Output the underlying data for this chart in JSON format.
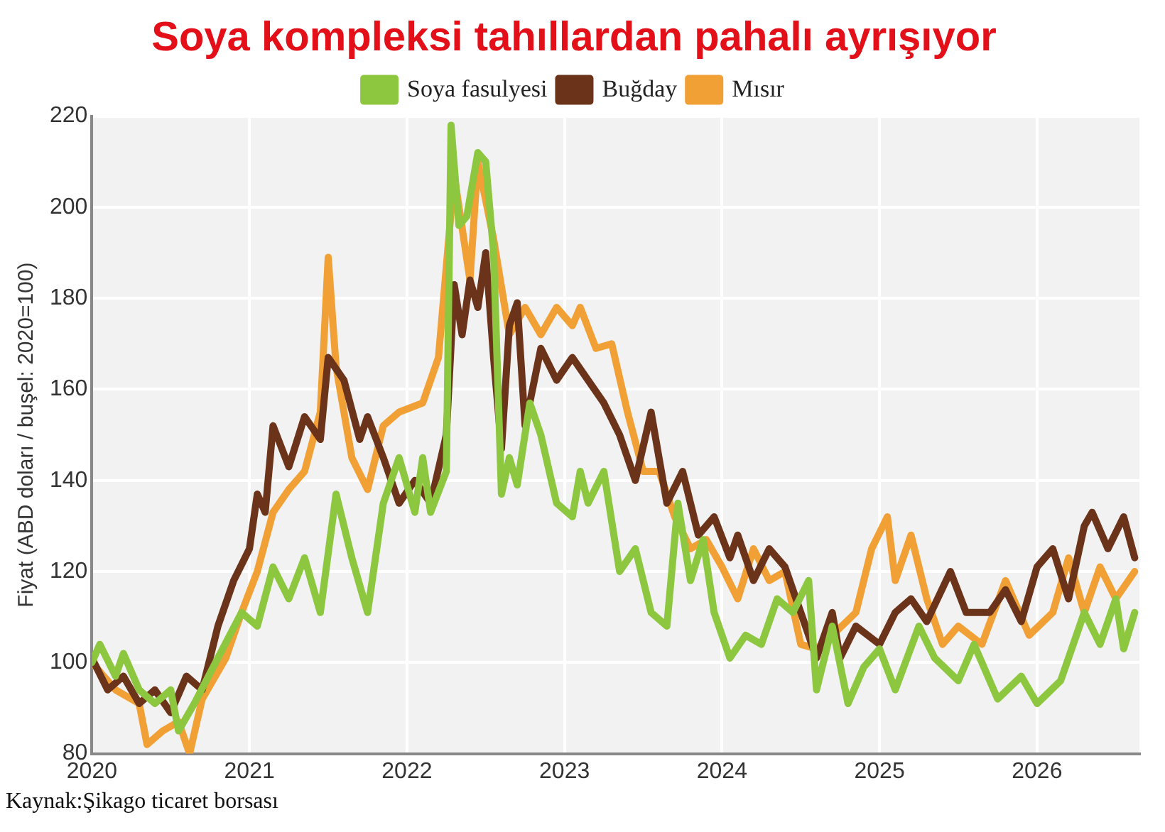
{
  "chart_data": {
    "type": "line",
    "title": "Soya kompleksi tahıllardan pahalı ayrışıyor",
    "ylabel": "Fiyat (ABD doları / buşel: 2020=100)",
    "xlim": [
      2020,
      2026.65
    ],
    "xticks": [
      2020,
      2021,
      2022,
      2023,
      2024,
      2025,
      2026
    ],
    "ylim": [
      80,
      220
    ],
    "yticks": [
      80,
      100,
      120,
      140,
      160,
      180,
      200,
      220
    ],
    "grid": true,
    "legend": "top",
    "line_style": "solid",
    "marker": "none",
    "annotations": [
      "Kaynak:Şikago ticaret borsası"
    ],
    "series": [
      {
        "name": "Soya fasulyesi",
        "color": "#8dc63f",
        "x": [
          2020.0,
          2020.05,
          2020.15,
          2020.2,
          2020.3,
          2020.4,
          2020.5,
          2020.55,
          2020.65,
          2020.8,
          2020.95,
          2021.05,
          2021.15,
          2021.25,
          2021.35,
          2021.45,
          2021.55,
          2021.65,
          2021.75,
          2021.85,
          2021.95,
          2022.05,
          2022.1,
          2022.15,
          2022.25,
          2022.28,
          2022.33,
          2022.38,
          2022.45,
          2022.5,
          2022.55,
          2022.6,
          2022.65,
          2022.7,
          2022.78,
          2022.85,
          2022.95,
          2023.05,
          2023.1,
          2023.15,
          2023.25,
          2023.35,
          2023.45,
          2023.55,
          2023.65,
          2023.72,
          2023.8,
          2023.88,
          2023.95,
          2024.05,
          2024.15,
          2024.25,
          2024.35,
          2024.45,
          2024.55,
          2024.6,
          2024.7,
          2024.8,
          2024.9,
          2025.0,
          2025.1,
          2025.25,
          2025.35,
          2025.5,
          2025.6,
          2025.75,
          2025.9,
          2026.0,
          2026.15,
          2026.3,
          2026.4,
          2026.5,
          2026.55,
          2026.62
        ],
        "values": [
          100,
          104,
          97,
          102,
          94,
          91,
          94,
          85,
          91,
          101,
          111,
          108,
          121,
          114,
          123,
          111,
          137,
          123,
          111,
          135,
          145,
          133,
          145,
          133,
          142,
          218,
          196,
          198,
          212,
          210,
          190,
          137,
          145,
          139,
          157,
          150,
          135,
          132,
          142,
          135,
          142,
          120,
          125,
          111,
          108,
          135,
          118,
          127,
          111,
          101,
          106,
          104,
          114,
          111,
          118,
          94,
          108,
          91,
          99,
          103,
          94,
          108,
          101,
          96,
          104,
          92,
          97,
          91,
          96,
          111,
          104,
          114,
          103,
          111
        ]
      },
      {
        "name": "Buğday",
        "color": "#6b3319",
        "x": [
          2020.0,
          2020.1,
          2020.2,
          2020.3,
          2020.4,
          2020.5,
          2020.6,
          2020.7,
          2020.8,
          2020.9,
          2021.0,
          2021.05,
          2021.1,
          2021.15,
          2021.25,
          2021.35,
          2021.45,
          2021.5,
          2021.6,
          2021.7,
          2021.75,
          2021.85,
          2021.95,
          2022.05,
          2022.15,
          2022.25,
          2022.3,
          2022.35,
          2022.4,
          2022.45,
          2022.5,
          2022.55,
          2022.6,
          2022.65,
          2022.7,
          2022.75,
          2022.85,
          2022.95,
          2023.05,
          2023.15,
          2023.25,
          2023.35,
          2023.45,
          2023.55,
          2023.65,
          2023.75,
          2023.85,
          2023.95,
          2024.05,
          2024.1,
          2024.2,
          2024.3,
          2024.4,
          2024.5,
          2024.6,
          2024.7,
          2024.75,
          2024.85,
          2025.0,
          2025.1,
          2025.2,
          2025.3,
          2025.45,
          2025.55,
          2025.7,
          2025.8,
          2025.9,
          2026.0,
          2026.1,
          2026.2,
          2026.3,
          2026.35,
          2026.45,
          2026.55,
          2026.62
        ],
        "values": [
          101,
          94,
          97,
          91,
          94,
          89,
          97,
          94,
          108,
          118,
          125,
          137,
          133,
          152,
          143,
          154,
          149,
          167,
          162,
          149,
          154,
          145,
          135,
          140,
          135,
          150,
          183,
          172,
          184,
          178,
          190,
          167,
          147,
          174,
          179,
          152,
          169,
          162,
          167,
          162,
          157,
          150,
          140,
          155,
          135,
          142,
          128,
          132,
          123,
          128,
          118,
          125,
          121,
          111,
          101,
          111,
          101,
          108,
          104,
          111,
          114,
          109,
          120,
          111,
          111,
          116,
          109,
          121,
          125,
          114,
          130,
          133,
          125,
          132,
          123
        ]
      },
      {
        "name": "Mısır",
        "color": "#f0a035",
        "x": [
          2020.0,
          2020.15,
          2020.3,
          2020.35,
          2020.45,
          2020.55,
          2020.62,
          2020.7,
          2020.85,
          2020.95,
          2021.05,
          2021.15,
          2021.25,
          2021.35,
          2021.45,
          2021.5,
          2021.55,
          2021.65,
          2021.75,
          2021.85,
          2021.95,
          2022.1,
          2022.2,
          2022.3,
          2022.4,
          2022.45,
          2022.55,
          2022.65,
          2022.75,
          2022.85,
          2022.95,
          2023.05,
          2023.1,
          2023.2,
          2023.3,
          2023.4,
          2023.5,
          2023.6,
          2023.7,
          2023.8,
          2023.9,
          2024.0,
          2024.1,
          2024.2,
          2024.3,
          2024.4,
          2024.5,
          2024.6,
          2024.7,
          2024.85,
          2024.95,
          2025.05,
          2025.1,
          2025.2,
          2025.3,
          2025.4,
          2025.5,
          2025.65,
          2025.8,
          2025.95,
          2026.1,
          2026.2,
          2026.3,
          2026.4,
          2026.5,
          2026.62
        ],
        "values": [
          100,
          94,
          91,
          82,
          85,
          87,
          80,
          92,
          101,
          111,
          120,
          133,
          138,
          142,
          155,
          189,
          165,
          145,
          138,
          152,
          155,
          157,
          167,
          207,
          184,
          210,
          193,
          172,
          178,
          172,
          178,
          174,
          178,
          169,
          170,
          155,
          142,
          142,
          132,
          125,
          127,
          121,
          114,
          125,
          118,
          120,
          104,
          103,
          106,
          111,
          125,
          132,
          118,
          128,
          114,
          104,
          108,
          104,
          118,
          106,
          111,
          123,
          111,
          121,
          114,
          120
        ]
      }
    ]
  }
}
